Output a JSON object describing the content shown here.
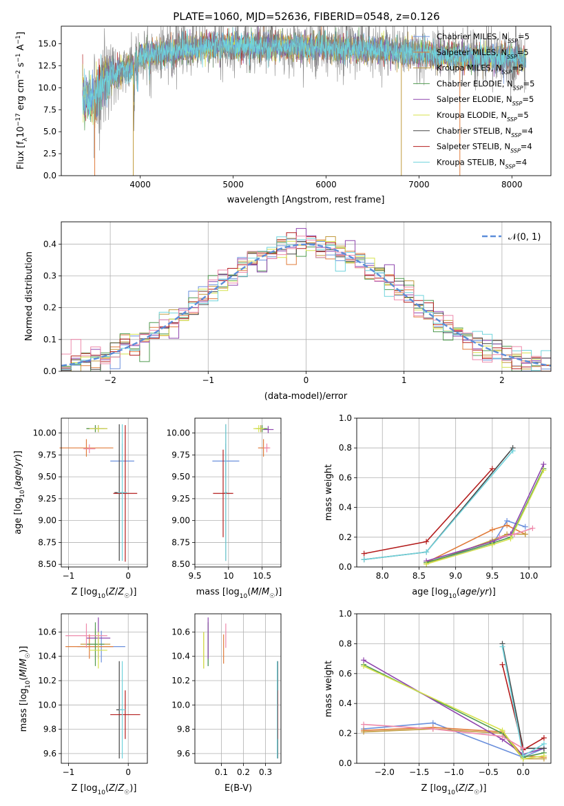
{
  "figure": {
    "title": "PLATE=1060, MJD=52636, FIBERID=0548, z=0.126"
  },
  "colors": {
    "Chabrier MILES": "#6a8fdc",
    "Salpeter MILES": "#e07b3a",
    "Kroupa MILES": "#c19a3c",
    "Chabrier ELODIE": "#4f9a4f",
    "Salpeter ELODIE": "#8e44ad",
    "Kroupa ELODIE": "#d4e24a",
    "Chabrier STELIB": "#444444",
    "Salpeter STELIB": "#b31b1b",
    "Kroupa STELIB": "#6fd3dc",
    "gaussian": "#5b8dd9",
    "pink": "#ee88aa",
    "grey_data": "#808080"
  },
  "chart_data": [
    {
      "id": "spectrum",
      "type": "line",
      "title": "PLATE=1060, MJD=52636, FIBERID=0548, z=0.126",
      "xlabel": "wavelength [Angstrom, rest frame]",
      "ylabel": "Flux [f_λ 10^-17 erg cm^-2 s^-1 A^-1]",
      "xlim": [
        3150,
        8420
      ],
      "ylim": [
        0,
        17
      ],
      "xticks": [
        4000,
        5000,
        6000,
        7000,
        8000
      ],
      "yticks": [
        0.0,
        2.5,
        5.0,
        7.5,
        10.0,
        12.5,
        15.0
      ],
      "legend": "upper right",
      "legend_entries": [
        "Chabrier MILES, N_SSP=5",
        "Salpeter MILES, N_SSP=5",
        "Kroupa MILES, N_SSP=5",
        "Chabrier ELODIE, N_SSP=5",
        "Salpeter ELODIE, N_SSP=5",
        "Kroupa ELODIE, N_SSP=5",
        "Chabrier STELIB, N_SSP=4",
        "Salpeter STELIB, N_SSP=4",
        "Kroupa STELIB, N_SSP=4"
      ],
      "continuum": [
        [
          3380,
          8.9
        ],
        [
          3500,
          8.5
        ],
        [
          3600,
          10.5
        ],
        [
          3700,
          11.5
        ],
        [
          3900,
          12.3
        ],
        [
          4000,
          13.5
        ],
        [
          4200,
          14.0
        ],
        [
          4500,
          14.5
        ],
        [
          5000,
          14.8
        ],
        [
          5500,
          14.7
        ],
        [
          6000,
          14.6
        ],
        [
          6500,
          14.3
        ],
        [
          7000,
          13.9
        ],
        [
          7500,
          13.5
        ],
        [
          8000,
          13.4
        ],
        [
          8150,
          13.2
        ]
      ],
      "spikes": [
        [
          3510,
          0
        ],
        [
          3925,
          0
        ],
        [
          6810,
          0
        ],
        [
          7440,
          0
        ]
      ]
    },
    {
      "id": "residuals",
      "type": "histogram",
      "xlabel": "(data-model)/error",
      "ylabel": "Normed distribution",
      "xlim": [
        -2.5,
        2.5
      ],
      "ylim": [
        0,
        0.47
      ],
      "xticks": [
        -2,
        -1,
        0,
        1,
        2
      ],
      "yticks": [
        0.0,
        0.1,
        0.2,
        0.3,
        0.4
      ],
      "legend": "upper right",
      "legend_entries": [
        "𝒩(0, 1)"
      ],
      "bin_width": 0.1,
      "gaussian": {
        "mean": 0,
        "sigma": 1
      }
    },
    {
      "id": "age-vs-Z",
      "type": "errorbar",
      "xlabel": "Z [log10(Z/Z☉)]",
      "ylabel": "age  [log10(age/yr)]",
      "xlim": [
        -1.12,
        0.32
      ],
      "ylim": [
        8.47,
        10.17
      ],
      "xticks": [
        -1,
        0
      ],
      "yticks": [
        8.5,
        8.75,
        9.0,
        9.25,
        9.5,
        9.75,
        10.0
      ],
      "points": [
        {
          "model": "Chabrier MILES",
          "x": -0.1,
          "xerr": 0.2,
          "y": 9.68,
          "yerr": 0.2
        },
        {
          "model": "Salpeter MILES",
          "x": -0.7,
          "xerr": 0.45,
          "y": 9.83,
          "yerr": 0.1
        },
        {
          "model": "Kroupa MILES",
          "x": -0.55,
          "xerr": 0.15,
          "y": 10.05,
          "yerr": 0.04
        },
        {
          "model": "Chabrier ELODIE",
          "x": -0.55,
          "xerr": 0.15,
          "y": 10.05,
          "yerr": 0.04
        },
        {
          "model": "Salpeter ELODIE",
          "x": -0.5,
          "xerr": 0.15,
          "y": 10.05,
          "yerr": 0.04
        },
        {
          "model": "Kroupa ELODIE",
          "x": -0.5,
          "xerr": 0.15,
          "y": 10.05,
          "yerr": 0.04
        },
        {
          "model": "Chabrier STELIB",
          "x": -0.15,
          "xerr": 0.08,
          "y": 9.32,
          "yerr": 0.78
        },
        {
          "model": "Salpeter STELIB",
          "x": -0.05,
          "xerr": 0.2,
          "y": 9.31,
          "yerr": 0.78
        },
        {
          "model": "Kroupa STELIB",
          "x": -0.1,
          "xerr": 0.08,
          "y": 9.32,
          "yerr": 0.78
        },
        {
          "model": "pink",
          "x": -0.65,
          "xerr": 0.1,
          "y": 9.82,
          "yerr": 0.05
        }
      ]
    },
    {
      "id": "age-vs-mass",
      "type": "errorbar",
      "xlabel": "mass [log10(M/M☉)]",
      "ylabel": "",
      "xlim": [
        9.5,
        10.78
      ],
      "ylim": [
        8.47,
        10.17
      ],
      "xticks": [
        9.5,
        10.0,
        10.5
      ],
      "yticks": [
        8.5,
        8.75,
        9.0,
        9.25,
        9.5,
        9.75,
        10.0
      ],
      "points": [
        {
          "model": "Chabrier MILES",
          "x": 9.96,
          "xerr": 0.2,
          "y": 9.68,
          "yerr": 0.2
        },
        {
          "model": "Salpeter MILES",
          "x": 10.52,
          "xerr": 0.08,
          "y": 9.83,
          "yerr": 0.1
        },
        {
          "model": "Kroupa MILES",
          "x": 10.48,
          "xerr": 0.08,
          "y": 10.05,
          "yerr": 0.04
        },
        {
          "model": "Chabrier ELODIE",
          "x": 10.5,
          "xerr": 0.08,
          "y": 10.05,
          "yerr": 0.04
        },
        {
          "model": "Salpeter ELODIE",
          "x": 10.59,
          "xerr": 0.08,
          "y": 10.04,
          "yerr": 0.04
        },
        {
          "model": "Kroupa ELODIE",
          "x": 10.45,
          "xerr": 0.08,
          "y": 10.05,
          "yerr": 0.04
        },
        {
          "model": "Chabrier STELIB",
          "x": 9.96,
          "xerr": 0.02,
          "y": 9.32,
          "yerr": 0.78
        },
        {
          "model": "Salpeter STELIB",
          "x": 9.92,
          "xerr": 0.15,
          "y": 9.31,
          "yerr": 0.5
        },
        {
          "model": "Kroupa STELIB",
          "x": 9.96,
          "xerr": 0.02,
          "y": 9.32,
          "yerr": 0.78
        },
        {
          "model": "pink",
          "x": 10.57,
          "xerr": 0.05,
          "y": 9.83,
          "yerr": 0.05
        }
      ]
    },
    {
      "id": "mass-weight-vs-age",
      "type": "line",
      "xlabel": "age  [log10(age/yr)]",
      "ylabel": "mass weight",
      "xlim": [
        7.65,
        10.3
      ],
      "ylim": [
        0,
        1.0
      ],
      "xticks": [
        8.0,
        8.5,
        9.0,
        9.5,
        10.0
      ],
      "yticks": [
        0.0,
        0.2,
        0.4,
        0.6,
        0.8,
        1.0
      ],
      "grid": true,
      "series": [
        {
          "model": "Chabrier MILES",
          "x": [
            8.6,
            9.5,
            9.7,
            9.95
          ],
          "y": [
            0.03,
            0.15,
            0.31,
            0.27
          ]
        },
        {
          "model": "Salpeter MILES",
          "x": [
            8.6,
            9.5,
            9.7,
            9.95
          ],
          "y": [
            0.03,
            0.25,
            0.28,
            0.22
          ]
        },
        {
          "model": "Kroupa MILES",
          "x": [
            8.6,
            9.5,
            9.7,
            9.95
          ],
          "y": [
            0.02,
            0.18,
            0.22,
            0.22
          ]
        },
        {
          "model": "Chabrier ELODIE",
          "x": [
            8.6,
            9.5,
            9.75,
            10.2
          ],
          "y": [
            0.03,
            0.16,
            0.2,
            0.66
          ]
        },
        {
          "model": "Salpeter ELODIE",
          "x": [
            8.6,
            9.5,
            9.75,
            10.2
          ],
          "y": [
            0.04,
            0.17,
            0.22,
            0.69
          ]
        },
        {
          "model": "Kroupa ELODIE",
          "x": [
            8.6,
            9.5,
            9.75,
            10.2
          ],
          "y": [
            0.02,
            0.15,
            0.19,
            0.65
          ]
        },
        {
          "model": "Chabrier STELIB",
          "x": [
            7.75,
            8.6,
            9.78
          ],
          "y": [
            0.05,
            0.1,
            0.8
          ]
        },
        {
          "model": "Salpeter STELIB",
          "x": [
            7.75,
            8.6,
            9.5
          ],
          "y": [
            0.09,
            0.17,
            0.66
          ]
        },
        {
          "model": "Kroupa STELIB",
          "x": [
            7.75,
            8.6,
            9.78
          ],
          "y": [
            0.05,
            0.1,
            0.78
          ]
        },
        {
          "model": "pink",
          "x": [
            9.6,
            9.8,
            10.05
          ],
          "y": [
            0.2,
            0.22,
            0.26
          ]
        }
      ]
    },
    {
      "id": "mass-vs-Z",
      "type": "errorbar",
      "xlabel": "Z [log10(Z/Z☉)]",
      "ylabel": "mass [log10(M/M☉)]",
      "xlim": [
        -1.12,
        0.32
      ],
      "ylim": [
        9.52,
        10.75
      ],
      "xticks": [
        -1,
        0
      ],
      "yticks": [
        9.6,
        9.8,
        10.0,
        10.2,
        10.4,
        10.6
      ],
      "points": [
        {
          "model": "Chabrier MILES",
          "x": -0.45,
          "xerr": 0.4,
          "y": 10.48,
          "yerr": 0.13
        },
        {
          "model": "Salpeter MILES",
          "x": -0.65,
          "xerr": 0.4,
          "y": 10.48,
          "yerr": 0.1
        },
        {
          "model": "Kroupa MILES",
          "x": -0.55,
          "xerr": 0.25,
          "y": 10.5,
          "yerr": 0.13
        },
        {
          "model": "Chabrier ELODIE",
          "x": -0.55,
          "xerr": 0.15,
          "y": 10.5,
          "yerr": 0.18
        },
        {
          "model": "Salpeter ELODIE",
          "x": -0.5,
          "xerr": 0.2,
          "y": 10.55,
          "yerr": 0.17
        },
        {
          "model": "Kroupa ELODIE",
          "x": -0.5,
          "xerr": 0.15,
          "y": 10.45,
          "yerr": 0.15
        },
        {
          "model": "Chabrier STELIB",
          "x": -0.15,
          "xerr": 0.05,
          "y": 9.96,
          "yerr": 0.4
        },
        {
          "model": "Salpeter STELIB",
          "x": -0.05,
          "xerr": 0.25,
          "y": 9.92,
          "yerr": 0.2
        },
        {
          "model": "Kroupa STELIB",
          "x": -0.1,
          "xerr": 0.05,
          "y": 9.96,
          "yerr": 0.4
        },
        {
          "model": "pink",
          "x": -0.7,
          "xerr": 0.35,
          "y": 10.57,
          "yerr": 0.1
        }
      ]
    },
    {
      "id": "mass-vs-ebv",
      "type": "errorbar",
      "xlabel": "E(B-V)",
      "ylabel": "",
      "xlim": [
        -0.02,
        0.37
      ],
      "ylim": [
        9.52,
        10.75
      ],
      "xticks": [
        0.1,
        0.2,
        0.3
      ],
      "yticks": [
        9.6,
        9.8,
        10.0,
        10.2,
        10.4,
        10.6
      ],
      "points": [
        {
          "model": "Chabrier MILES",
          "x": 0.04,
          "xerr": 0.0,
          "y": 10.45,
          "yerr": 0.13
        },
        {
          "model": "Salpeter MILES",
          "x": 0.11,
          "xerr": 0.0,
          "y": 10.46,
          "yerr": 0.12
        },
        {
          "model": "Kroupa MILES",
          "x": 0.02,
          "xerr": 0.0,
          "y": 10.45,
          "yerr": 0.15
        },
        {
          "model": "Chabrier ELODIE",
          "x": 0.04,
          "xerr": 0.0,
          "y": 10.5,
          "yerr": 0.18
        },
        {
          "model": "Salpeter ELODIE",
          "x": 0.04,
          "xerr": 0.0,
          "y": 10.55,
          "yerr": 0.17
        },
        {
          "model": "Kroupa ELODIE",
          "x": 0.02,
          "xerr": 0.0,
          "y": 10.45,
          "yerr": 0.15
        },
        {
          "model": "Chabrier STELIB",
          "x": 0.355,
          "xerr": 0.0,
          "y": 9.96,
          "yerr": 0.4
        },
        {
          "model": "Salpeter STELIB",
          "x": 0.355,
          "xerr": 0.0,
          "y": 9.92,
          "yerr": 0.2
        },
        {
          "model": "Kroupa STELIB",
          "x": 0.353,
          "xerr": 0.0,
          "y": 9.96,
          "yerr": 0.4
        },
        {
          "model": "pink",
          "x": 0.12,
          "xerr": 0.0,
          "y": 10.57,
          "yerr": 0.1
        }
      ]
    },
    {
      "id": "mass-weight-vs-Z",
      "type": "line",
      "xlabel": "Z [log10(Z/Z☉)]",
      "ylabel": "mass weight",
      "xlim": [
        -2.4,
        0.4
      ],
      "ylim": [
        0,
        1.0
      ],
      "xticks": [
        -2.0,
        -1.5,
        -1.0,
        -0.5,
        0.0
      ],
      "yticks": [
        0.0,
        0.2,
        0.4,
        0.6,
        0.8,
        1.0
      ],
      "grid": true,
      "series": [
        {
          "model": "Chabrier MILES",
          "x": [
            -2.3,
            -1.3,
            0.0,
            0.3
          ],
          "y": [
            0.23,
            0.27,
            0.04,
            0.1
          ]
        },
        {
          "model": "Salpeter MILES",
          "x": [
            -2.3,
            -1.3,
            -0.3,
            0.0,
            0.3
          ],
          "y": [
            0.22,
            0.24,
            0.21,
            0.05,
            0.04
          ]
        },
        {
          "model": "Kroupa MILES",
          "x": [
            -2.3,
            -1.3,
            -0.3,
            0.0,
            0.3
          ],
          "y": [
            0.21,
            0.23,
            0.2,
            0.03,
            0.03
          ]
        },
        {
          "model": "Chabrier ELODIE",
          "x": [
            -2.3,
            -0.3,
            0.0,
            0.3
          ],
          "y": [
            0.66,
            0.2,
            0.04,
            0.07
          ]
        },
        {
          "model": "Salpeter ELODIE",
          "x": [
            -2.3,
            -0.3,
            0.0,
            0.3
          ],
          "y": [
            0.69,
            0.16,
            0.06,
            0.1
          ]
        },
        {
          "model": "Kroupa ELODIE",
          "x": [
            -2.3,
            -0.3,
            0.0,
            0.3
          ],
          "y": [
            0.65,
            0.22,
            0.03,
            0.05
          ]
        },
        {
          "model": "Chabrier STELIB",
          "x": [
            -0.3,
            0.0,
            0.3
          ],
          "y": [
            0.8,
            0.1,
            0.1
          ]
        },
        {
          "model": "Salpeter STELIB",
          "x": [
            -0.3,
            0.0,
            0.3
          ],
          "y": [
            0.66,
            0.09,
            0.17
          ]
        },
        {
          "model": "Kroupa STELIB",
          "x": [
            -0.3,
            0.0,
            0.3
          ],
          "y": [
            0.78,
            0.05,
            0.13
          ]
        },
        {
          "model": "pink",
          "x": [
            -2.3,
            -1.3,
            -0.3,
            0.0
          ],
          "y": [
            0.26,
            0.23,
            0.18,
            0.1
          ]
        }
      ]
    }
  ]
}
